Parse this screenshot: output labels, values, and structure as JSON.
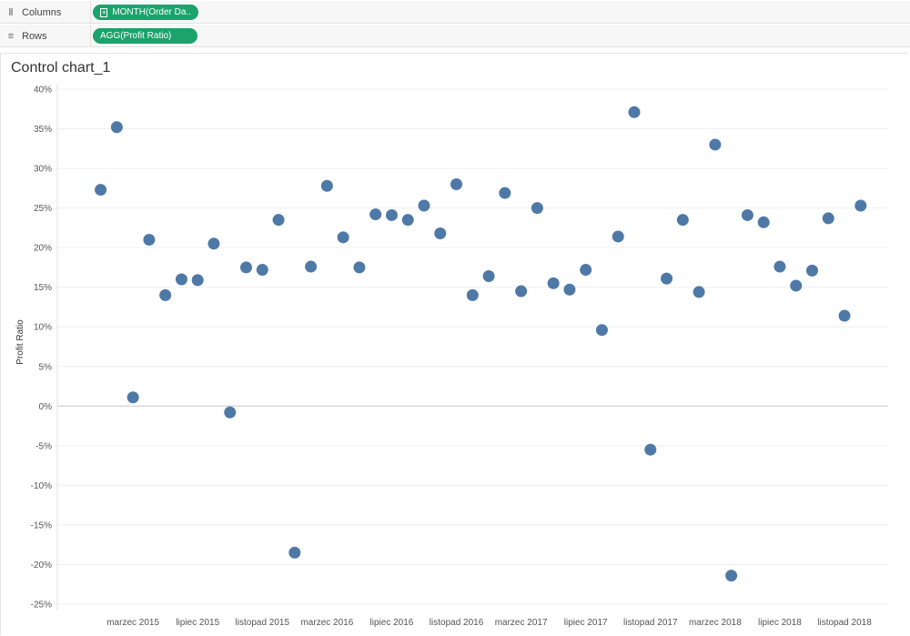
{
  "shelves": {
    "columns": {
      "label": "Columns",
      "icon": "columns-icon",
      "pill": "MONTH(Order Da.."
    },
    "rows": {
      "label": "Rows",
      "icon": "rows-icon",
      "pill": "AGG(Profit Ratio)"
    }
  },
  "view": {
    "title": "Control chart_1"
  },
  "colors": {
    "mark": "#4e79a7",
    "pill": "#1aa36b"
  },
  "chart_data": {
    "type": "scatter",
    "title": "Control chart_1",
    "ylabel": "Profit Ratio",
    "xlabel": "",
    "ylim": [
      -25,
      40
    ],
    "yticks": [
      "40%",
      "35%",
      "30%",
      "25%",
      "20%",
      "15%",
      "10%",
      "5%",
      "0%",
      "-5%",
      "-10%",
      "-15%",
      "-20%",
      "-25%"
    ],
    "x_tick_labels": [
      "marzec 2015",
      "lipiec 2015",
      "listopad 2015",
      "marzec 2016",
      "lipiec 2016",
      "listopad 2016",
      "marzec 2017",
      "lipiec 2017",
      "listopad 2017",
      "marzec 2018",
      "lipiec 2018",
      "listopad 2018"
    ],
    "x_tick_months": [
      3,
      7,
      11,
      15,
      19,
      23,
      27,
      31,
      35,
      39,
      43,
      47
    ],
    "series": [
      {
        "x": [
          1,
          2,
          3,
          4,
          5,
          6,
          7,
          8,
          9,
          10,
          11,
          12,
          13,
          14,
          15,
          16,
          17,
          18,
          19,
          20,
          21,
          22,
          23,
          24,
          25,
          26,
          27,
          28,
          29,
          30,
          31,
          32,
          33,
          34,
          35,
          36,
          37,
          38,
          39,
          40,
          41,
          42,
          43,
          44,
          45,
          46,
          47,
          48
        ],
        "values": [
          27.3,
          35.2,
          1.1,
          21.0,
          14.0,
          16.0,
          15.9,
          20.5,
          -0.8,
          17.5,
          17.2,
          23.5,
          -18.5,
          17.6,
          27.8,
          21.3,
          17.5,
          24.2,
          24.1,
          23.5,
          25.3,
          21.8,
          28.0,
          14.0,
          16.4,
          26.9,
          14.5,
          25.0,
          15.5,
          14.7,
          17.2,
          9.6,
          21.4,
          37.1,
          -5.5,
          16.1,
          23.5,
          14.4,
          33.0,
          -21.4,
          24.1,
          23.2,
          17.6,
          15.2,
          17.1,
          23.7,
          11.4,
          25.3
        ]
      }
    ],
    "grid": true,
    "zero_line": true
  }
}
